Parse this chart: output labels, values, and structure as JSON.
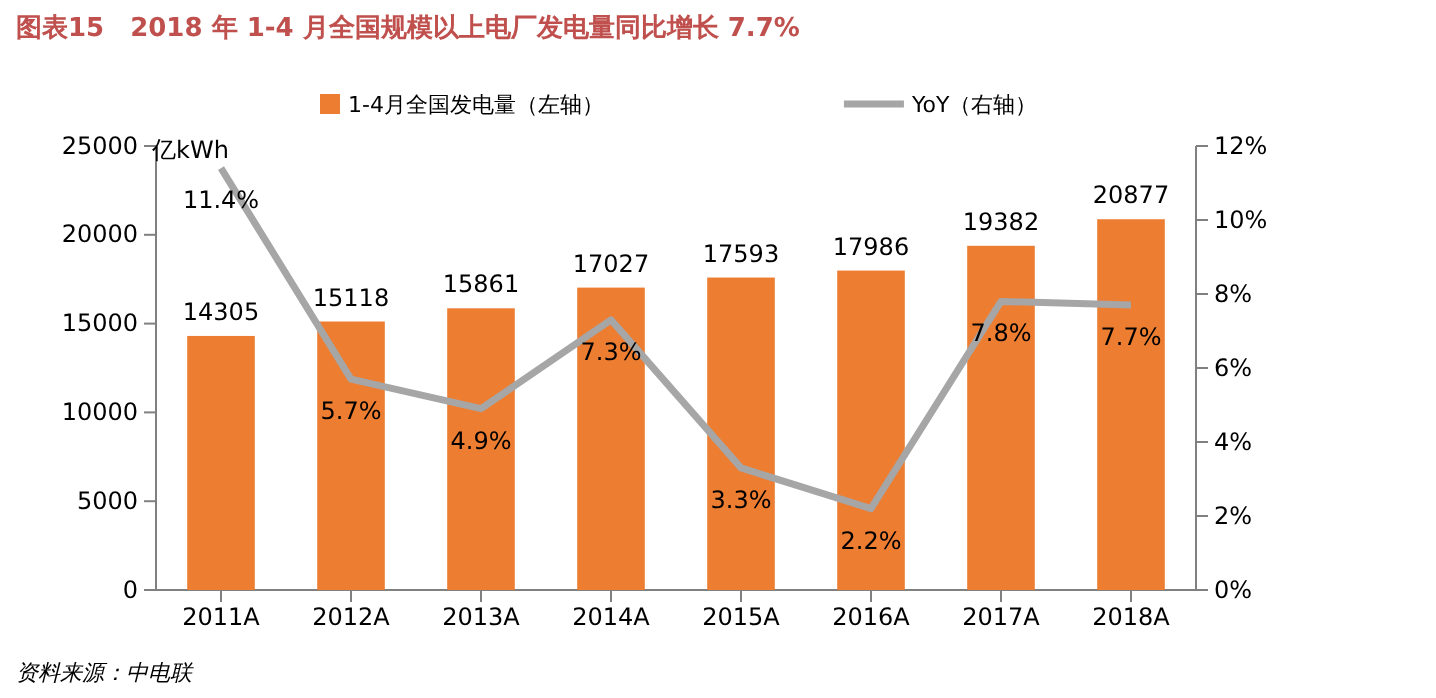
{
  "chart_data": {
    "type": "bar",
    "title": "图表15　2018 年 1-4 月全国规模以上电厂发电量同比增长 7.7%",
    "ylabel": "亿kWh",
    "categories": [
      "2011A",
      "2012A",
      "2013A",
      "2014A",
      "2015A",
      "2016A",
      "2017A",
      "2018A"
    ],
    "series": [
      {
        "name": "1-4月全国发电量（左轴）",
        "color": "#ed7d31",
        "values": [
          14305,
          15118,
          15861,
          17027,
          17593,
          17986,
          19382,
          20877
        ],
        "value_labels": [
          "14305",
          "15118",
          "15861",
          "17027",
          "17593",
          "17986",
          "19382",
          "20877"
        ]
      },
      {
        "name": "YoY（右轴）",
        "type": "line",
        "axis": "y2",
        "color": "#a6a6a6",
        "values": [
          11.4,
          5.7,
          4.9,
          7.3,
          3.3,
          2.2,
          7.8,
          7.7
        ],
        "value_labels": [
          "11.4%",
          "5.7%",
          "4.9%",
          "7.3%",
          "3.3%",
          "2.2%",
          "7.8%",
          "7.7%"
        ]
      }
    ],
    "ylim": [
      0,
      25000
    ],
    "yticks": [
      0,
      5000,
      10000,
      15000,
      20000,
      25000
    ],
    "y2lim": [
      0,
      12
    ],
    "y2ticks": [
      {
        "value": 0,
        "label": "0%"
      },
      {
        "value": 2,
        "label": "2%"
      },
      {
        "value": 4,
        "label": "4%"
      },
      {
        "value": 6,
        "label": "6%"
      },
      {
        "value": 8,
        "label": "8%"
      },
      {
        "value": 10,
        "label": "10%"
      },
      {
        "value": 12,
        "label": "12%"
      }
    ],
    "grid": false,
    "legend": "top",
    "marker": "none",
    "line_style": "solid",
    "annotations": [
      "资料来源：中电联"
    ]
  }
}
